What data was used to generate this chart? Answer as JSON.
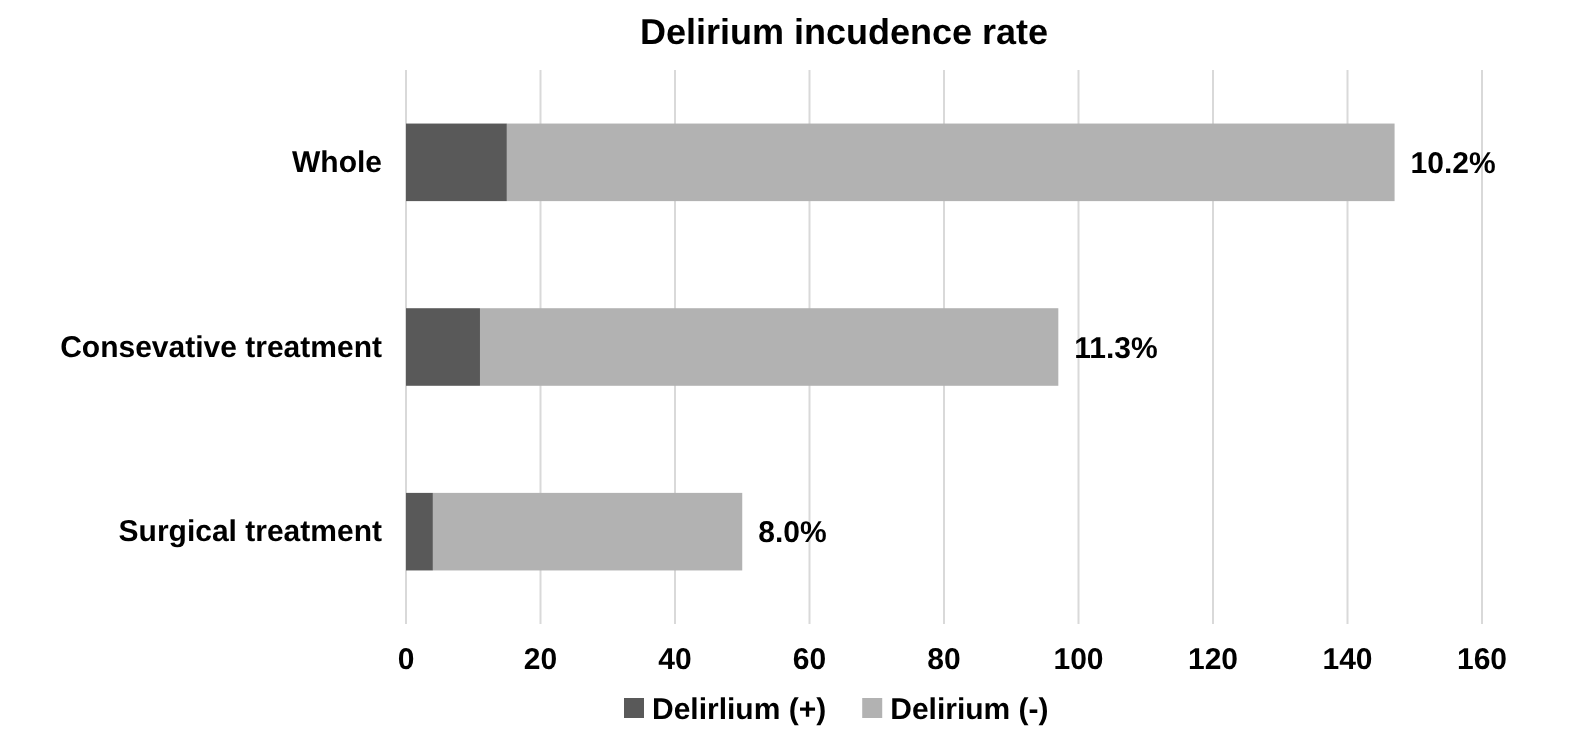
{
  "chart_data": {
    "type": "bar",
    "title": "Delirium incudence rate",
    "orientation": "horizontal",
    "stacked": true,
    "categories": [
      "Whole",
      "Consevative treatment",
      "Surgical treatment"
    ],
    "series": [
      {
        "name": "Delirlium (+)",
        "color": "#595959",
        "values": [
          15,
          11,
          4
        ]
      },
      {
        "name": "Delirium (-)",
        "color": "#b2b2b2",
        "values": [
          132,
          86,
          46
        ]
      }
    ],
    "annotations": [
      {
        "text": "10.2%",
        "x": 147,
        "y": "Whole"
      },
      {
        "text": "11.3%",
        "x": 97,
        "y": "Consevative treatment"
      },
      {
        "text": "8.0%",
        "x": 50,
        "y": "Surgical treatment"
      }
    ],
    "xlim": [
      0,
      160
    ],
    "xticks": [
      0,
      20,
      40,
      60,
      80,
      100,
      120,
      140,
      160
    ],
    "grid": "x",
    "legend": "bottom"
  }
}
